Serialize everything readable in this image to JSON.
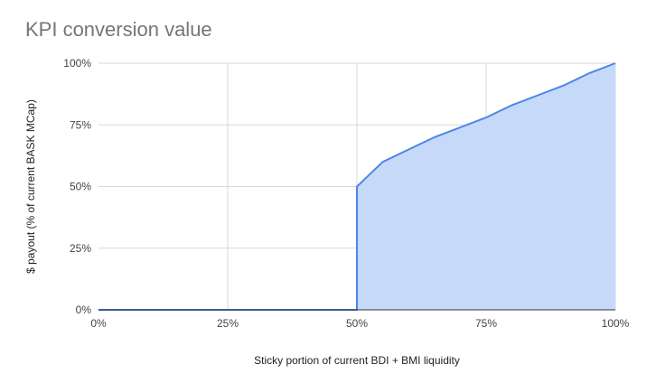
{
  "chart_data": {
    "type": "area",
    "title": "KPI conversion value",
    "xlabel": "Sticky portion of current BDI + BMI liquidity",
    "ylabel": "$ payout (% of current BASK MCap)",
    "x_ticks": [
      "0%",
      "25%",
      "50%",
      "75%",
      "100%"
    ],
    "y_ticks": [
      "0%",
      "25%",
      "50%",
      "75%",
      "100%"
    ],
    "xlim": [
      0,
      1
    ],
    "ylim": [
      0,
      1
    ],
    "grid": true,
    "legend": "none",
    "colors": {
      "line": "#4a86e8",
      "fill": "#c6d9f9",
      "grid": "#d9d9d9",
      "axis": "#333333"
    },
    "series": [
      {
        "x": [
          0,
          0.5,
          0.5,
          0.5,
          0.55,
          0.6,
          0.65,
          0.7,
          0.75,
          0.8,
          0.85,
          0.9,
          0.95,
          1.0
        ],
        "values": [
          0,
          0,
          0.5,
          0.5,
          0.6,
          0.65,
          0.7,
          0.74,
          0.78,
          0.83,
          0.87,
          0.91,
          0.96,
          1.0
        ]
      }
    ]
  }
}
